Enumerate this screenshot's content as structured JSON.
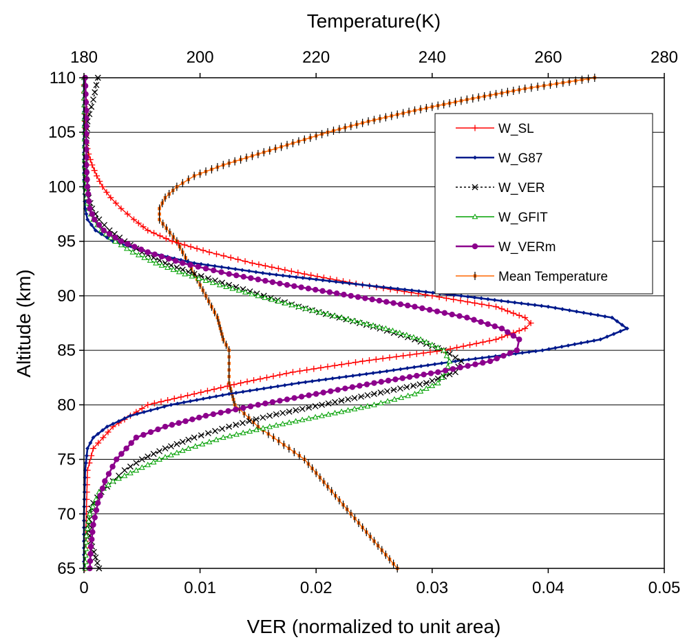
{
  "chart_data": {
    "type": "line",
    "xlabel_bottom": "VER (normalized to unit area)",
    "xlabel_top": "Temperature(K)",
    "ylabel": "Altitude (km)",
    "xlim_bottom": [
      0,
      0.05
    ],
    "xlim_top": [
      180,
      280
    ],
    "ylim": [
      65,
      110
    ],
    "xticks_bottom": [
      "0",
      "0.01",
      "0.02",
      "0.03",
      "0.04",
      "0.05"
    ],
    "xticks_top": [
      "180",
      "200",
      "220",
      "240",
      "260",
      "280"
    ],
    "yticks": [
      "65",
      "70",
      "75",
      "80",
      "85",
      "90",
      "95",
      "100",
      "105",
      "110"
    ],
    "grid": "horizontal",
    "legend_position": "top-right",
    "legend": [
      "W_SL",
      "W_G87",
      "W_VER",
      "W_GFIT",
      "W_VERm",
      "Mean Temperature"
    ],
    "series": [
      {
        "name": "W_SL",
        "axis": "bottom",
        "color": "#ff0000",
        "marker": "plus",
        "dash": "solid",
        "points": [
          [
            0.0001,
            65
          ],
          [
            0.0002,
            70
          ],
          [
            0.0003,
            74
          ],
          [
            0.0008,
            76
          ],
          [
            0.0025,
            78
          ],
          [
            0.0055,
            80
          ],
          [
            0.0095,
            81
          ],
          [
            0.0135,
            82
          ],
          [
            0.018,
            83
          ],
          [
            0.024,
            84
          ],
          [
            0.031,
            85
          ],
          [
            0.0355,
            86
          ],
          [
            0.038,
            87
          ],
          [
            0.0385,
            87.5
          ],
          [
            0.038,
            88
          ],
          [
            0.0355,
            89
          ],
          [
            0.03,
            90
          ],
          [
            0.024,
            91
          ],
          [
            0.019,
            92
          ],
          [
            0.0145,
            93
          ],
          [
            0.0108,
            94
          ],
          [
            0.0076,
            95
          ],
          [
            0.0055,
            96
          ],
          [
            0.0043,
            97
          ],
          [
            0.0032,
            98
          ],
          [
            0.0023,
            99
          ],
          [
            0.0016,
            100
          ],
          [
            0.0011,
            101
          ],
          [
            0.0007,
            102
          ],
          [
            0.0004,
            103
          ],
          [
            0.0002,
            104
          ],
          [
            0.0001,
            106
          ],
          [
            0.0,
            110
          ]
        ]
      },
      {
        "name": "W_G87",
        "axis": "bottom",
        "color": "#001a8c",
        "marker": "diamond",
        "dash": "solid",
        "points": [
          [
            0.0,
            65
          ],
          [
            0.0,
            70
          ],
          [
            0.0001,
            74
          ],
          [
            0.0003,
            76
          ],
          [
            0.0008,
            77
          ],
          [
            0.002,
            78
          ],
          [
            0.004,
            79
          ],
          [
            0.0075,
            80
          ],
          [
            0.0125,
            81
          ],
          [
            0.0185,
            82
          ],
          [
            0.0255,
            83
          ],
          [
            0.032,
            84
          ],
          [
            0.0395,
            85
          ],
          [
            0.0445,
            86
          ],
          [
            0.0468,
            87
          ],
          [
            0.0455,
            88
          ],
          [
            0.04,
            89
          ],
          [
            0.0325,
            90
          ],
          [
            0.024,
            91
          ],
          [
            0.016,
            92
          ],
          [
            0.0095,
            93
          ],
          [
            0.0055,
            94
          ],
          [
            0.0025,
            95
          ],
          [
            0.001,
            96
          ],
          [
            0.0003,
            97
          ],
          [
            0.0001,
            98
          ],
          [
            0.0,
            100
          ],
          [
            0.0,
            110
          ]
        ]
      },
      {
        "name": "W_VER",
        "axis": "bottom",
        "color": "#000000",
        "marker": "cross",
        "dash": "dashed",
        "points": [
          [
            0.0013,
            65
          ],
          [
            0.001,
            66
          ],
          [
            0.0007,
            67
          ],
          [
            0.0005,
            68
          ],
          [
            0.0004,
            69
          ],
          [
            0.0005,
            70
          ],
          [
            0.0008,
            71
          ],
          [
            0.0015,
            72
          ],
          [
            0.0025,
            73
          ],
          [
            0.0035,
            74
          ],
          [
            0.005,
            75
          ],
          [
            0.007,
            76
          ],
          [
            0.0095,
            77
          ],
          [
            0.0125,
            78
          ],
          [
            0.016,
            79
          ],
          [
            0.0205,
            80
          ],
          [
            0.025,
            81
          ],
          [
            0.0295,
            82
          ],
          [
            0.032,
            83
          ],
          [
            0.0325,
            84
          ],
          [
            0.031,
            85
          ],
          [
            0.0285,
            86
          ],
          [
            0.0255,
            87
          ],
          [
            0.022,
            88
          ],
          [
            0.0185,
            89
          ],
          [
            0.0155,
            90
          ],
          [
            0.0125,
            91
          ],
          [
            0.0095,
            92
          ],
          [
            0.007,
            93
          ],
          [
            0.005,
            94
          ],
          [
            0.0035,
            95
          ],
          [
            0.0022,
            96
          ],
          [
            0.0013,
            97
          ],
          [
            0.0007,
            98
          ],
          [
            0.0004,
            99
          ],
          [
            0.0002,
            100
          ],
          [
            0.0001,
            102
          ],
          [
            0.0003,
            106
          ],
          [
            0.0008,
            108
          ],
          [
            0.0012,
            110
          ]
        ]
      },
      {
        "name": "W_GFIT",
        "axis": "bottom",
        "color": "#00a000",
        "marker": "triangle",
        "dash": "solid",
        "points": [
          [
            0.0001,
            65
          ],
          [
            0.0002,
            68
          ],
          [
            0.0005,
            70
          ],
          [
            0.0013,
            72
          ],
          [
            0.0025,
            73
          ],
          [
            0.0045,
            74
          ],
          [
            0.0065,
            75
          ],
          [
            0.009,
            76
          ],
          [
            0.012,
            77
          ],
          [
            0.016,
            78
          ],
          [
            0.0205,
            79
          ],
          [
            0.025,
            80
          ],
          [
            0.0285,
            81
          ],
          [
            0.0305,
            82
          ],
          [
            0.0312,
            83
          ],
          [
            0.0315,
            84
          ],
          [
            0.031,
            85
          ],
          [
            0.029,
            86
          ],
          [
            0.026,
            87
          ],
          [
            0.0222,
            88
          ],
          [
            0.0185,
            89
          ],
          [
            0.015,
            90
          ],
          [
            0.0117,
            91
          ],
          [
            0.0087,
            92
          ],
          [
            0.0062,
            93
          ],
          [
            0.0042,
            94
          ],
          [
            0.0027,
            95
          ],
          [
            0.0015,
            96
          ],
          [
            0.0008,
            97
          ],
          [
            0.0004,
            98
          ],
          [
            0.0002,
            99
          ],
          [
            0.0001,
            100
          ],
          [
            0.0,
            110
          ]
        ]
      },
      {
        "name": "W_VERm",
        "axis": "bottom",
        "color": "#8c008c",
        "marker": "circle",
        "dash": "solid",
        "points": [
          [
            0.0005,
            65
          ],
          [
            0.0006,
            67
          ],
          [
            0.0008,
            69
          ],
          [
            0.0012,
            71
          ],
          [
            0.0018,
            73
          ],
          [
            0.0028,
            75
          ],
          [
            0.0045,
            77
          ],
          [
            0.007,
            78
          ],
          [
            0.0105,
            79
          ],
          [
            0.015,
            80
          ],
          [
            0.02,
            81
          ],
          [
            0.025,
            82
          ],
          [
            0.0305,
            83
          ],
          [
            0.035,
            84
          ],
          [
            0.0373,
            85
          ],
          [
            0.0375,
            86
          ],
          [
            0.036,
            87
          ],
          [
            0.033,
            88
          ],
          [
            0.0285,
            89
          ],
          [
            0.023,
            90
          ],
          [
            0.0175,
            91
          ],
          [
            0.0125,
            92
          ],
          [
            0.0085,
            93
          ],
          [
            0.0055,
            94
          ],
          [
            0.0032,
            95
          ],
          [
            0.0017,
            96
          ],
          [
            0.0009,
            97
          ],
          [
            0.0005,
            98
          ],
          [
            0.0003,
            100
          ],
          [
            0.0002,
            102
          ],
          [
            0.0002,
            107
          ],
          [
            0.0001,
            110
          ]
        ]
      },
      {
        "name": "Mean Temperature",
        "axis": "top",
        "color": "#ff6600",
        "marker": "square",
        "dash": "solid",
        "points": [
          [
            234,
            65
          ],
          [
            226,
            70
          ],
          [
            218,
            75
          ],
          [
            210,
            78
          ],
          [
            206,
            80
          ],
          [
            205,
            82
          ],
          [
            205,
            85
          ],
          [
            204,
            86
          ],
          [
            203,
            88
          ],
          [
            201,
            90
          ],
          [
            198,
            93
          ],
          [
            196,
            95
          ],
          [
            193,
            97
          ],
          [
            193,
            98
          ],
          [
            194,
            99
          ],
          [
            196,
            100
          ],
          [
            199,
            101
          ],
          [
            204,
            102
          ],
          [
            210,
            103
          ],
          [
            216,
            104
          ],
          [
            222,
            105
          ],
          [
            229,
            106
          ],
          [
            237,
            107
          ],
          [
            246,
            108
          ],
          [
            256,
            109
          ],
          [
            268,
            110
          ]
        ]
      }
    ]
  }
}
